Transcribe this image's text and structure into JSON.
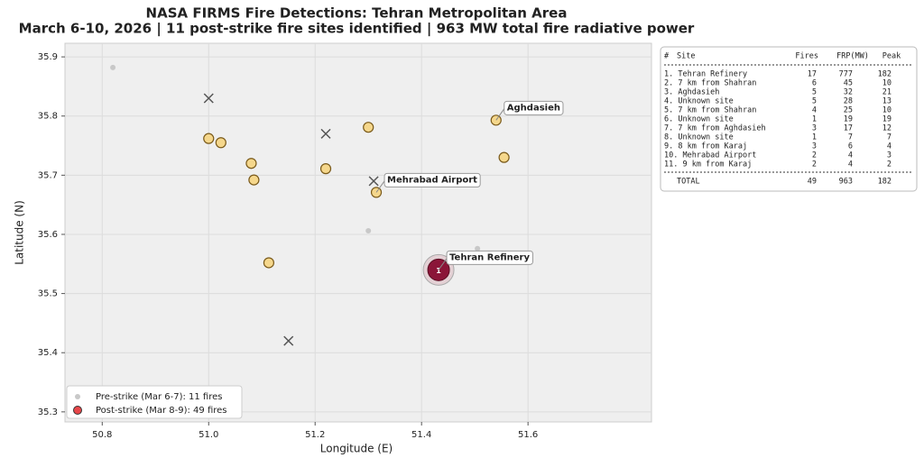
{
  "chart_data": {
    "type": "scatter",
    "title": "NASA FIRMS Fire Detections: Tehran Metropolitan Area",
    "subtitle": "March 6-10, 2026 | 11 post-strike fire sites identified | 963 MW total fire radiative power",
    "xlabel": "Longitude (E)",
    "ylabel": "Latitude (N)",
    "xlim": [
      50.73,
      51.832
    ],
    "ylim": [
      35.283,
      35.923
    ],
    "xticks": [
      50.8,
      {
        "value": 51,
        "label": "51.0"
      },
      51.2,
      51.4,
      51.6
    ],
    "yticks": [
      35.3,
      35.4,
      35.5,
      35.6,
      35.7,
      35.8,
      35.9
    ],
    "grid": true,
    "legend": "lower left",
    "series": [
      {
        "name": "Pre-strike (Mar 6-7): 11 fires",
        "color": "#c8c8c8",
        "x": [
          50.82,
          51.3,
          51.505
        ],
        "y": [
          35.882,
          35.606,
          35.576
        ]
      },
      {
        "name": "Post-strike (Mar 8-9): 49 fires",
        "color": "#e8474a",
        "marker_color": "#f5d78c",
        "x": [
          51.0,
          51.023,
          51.08,
          51.085,
          51.113,
          51.22,
          51.3,
          51.315,
          51.54,
          51.555,
          51.432
        ],
        "y": [
          35.762,
          35.755,
          35.72,
          35.692,
          35.552,
          35.711,
          35.781,
          35.671,
          35.793,
          35.73,
          35.54
        ],
        "highlight_index": 10,
        "highlight_color": "#8b1538",
        "highlight_label": "1"
      }
    ],
    "crosses": {
      "color": "#555555",
      "x": [
        51.0,
        51.22,
        51.31,
        51.15
      ],
      "y": [
        35.83,
        35.77,
        35.69,
        35.42
      ]
    },
    "annotations": [
      {
        "text": "Aghdasieh",
        "x": 51.54,
        "y": 35.793
      },
      {
        "text": "Mehrabad Airport",
        "x": 51.315,
        "y": 35.671
      },
      {
        "text": "Tehran Refinery",
        "x": 51.432,
        "y": 35.54
      }
    ]
  },
  "table": {
    "header": [
      "#",
      "Site",
      "Fires",
      "FRP(MW)",
      "Peak"
    ],
    "rows": [
      [
        "1. Tehran Refinery",
        "17",
        "777",
        "182"
      ],
      [
        "2. 7 km from Shahran",
        "6",
        "45",
        "10"
      ],
      [
        "3. Aghdasieh",
        "5",
        "32",
        "21"
      ],
      [
        "4. Unknown site",
        "5",
        "28",
        "13"
      ],
      [
        "5. 7 km from Shahran",
        "4",
        "25",
        "10"
      ],
      [
        "6. Unknown site",
        "1",
        "19",
        "19"
      ],
      [
        "7. 7 km from Aghdasieh",
        "3",
        "17",
        "12"
      ],
      [
        "8. Unknown site",
        "1",
        "7",
        "7"
      ],
      [
        "9. 8 km from Karaj",
        "3",
        "6",
        "4"
      ],
      [
        "10. Mehrabad Airport",
        "2",
        "4",
        "3"
      ],
      [
        "11. 9 km from Karaj",
        "2",
        "4",
        "2"
      ]
    ],
    "total": [
      "TOTAL",
      "49",
      "963",
      "182"
    ]
  }
}
